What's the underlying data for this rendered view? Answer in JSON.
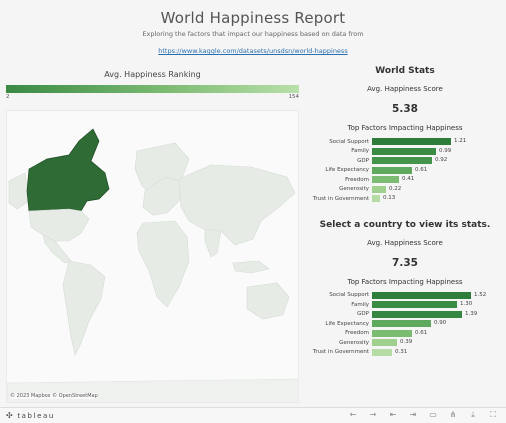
{
  "header": {
    "title": "World Happiness Report",
    "subtitle": "Exploring the factors that impact our happiness based on data from",
    "link": "https://www.kaggle.com/datasets/unsdsn/world-happiness"
  },
  "ranking": {
    "title": "Avg. Happiness Ranking",
    "min_label": "2",
    "max_label": "154",
    "gradient_colors": [
      "#3a8a44",
      "#7dbb73",
      "#b9e0aa"
    ]
  },
  "map": {
    "credit": "© 2023 Mapbox  © OpenStreetMap",
    "highlighted_country": "Canada",
    "highlight_color": "#2e6b35",
    "land_color": "#e6ebe6"
  },
  "world_stats": {
    "title": "World Stats",
    "score_label": "Avg. Happiness Score",
    "score_value": "5.38",
    "factors_title": "Top Factors Impacting Happiness",
    "factors": [
      {
        "label": "Social Support",
        "value": "1.21",
        "amount": 1.21,
        "color": "#2e7d3a"
      },
      {
        "label": "Family",
        "value": "0.99",
        "amount": 0.99,
        "color": "#3a8c44"
      },
      {
        "label": "GDP",
        "value": "0.92",
        "amount": 0.92,
        "color": "#44944c"
      },
      {
        "label": "Life Expectancy",
        "value": "0.61",
        "amount": 0.61,
        "color": "#5ea95e"
      },
      {
        "label": "Freedom",
        "value": "0.41",
        "amount": 0.41,
        "color": "#7cbc72"
      },
      {
        "label": "Generosity",
        "value": "0.22",
        "amount": 0.22,
        "color": "#9fd08e"
      },
      {
        "label": "Trust in Government",
        "value": "0.13",
        "amount": 0.13,
        "color": "#b6dca5"
      }
    ]
  },
  "country_stats": {
    "title": "Select a country to view its stats.",
    "score_label": "Avg. Happiness Score",
    "score_value": "7.35",
    "factors_title": "Top Factors Impacting Happiness",
    "factors": [
      {
        "label": "Social Support",
        "value": "1.52",
        "amount": 1.52,
        "color": "#2e7d3a"
      },
      {
        "label": "Family",
        "value": "1.30",
        "amount": 1.3,
        "color": "#3a8c44"
      },
      {
        "label": "GDP",
        "value": "1.39",
        "amount": 1.39,
        "color": "#358640"
      },
      {
        "label": "Life Expectancy",
        "value": "0.90",
        "amount": 0.9,
        "color": "#5ea95e"
      },
      {
        "label": "Freedom",
        "value": "0.61",
        "amount": 0.61,
        "color": "#7cbc72"
      },
      {
        "label": "Generosity",
        "value": "0.39",
        "amount": 0.39,
        "color": "#9fd08e"
      },
      {
        "label": "Trust in Government",
        "value": "0.31",
        "amount": 0.31,
        "color": "#b6dca5"
      }
    ]
  },
  "toolbar": {
    "logo_text": "tableau",
    "logo_mark": "✣",
    "icons": [
      {
        "name": "undo-icon",
        "glyph": "←"
      },
      {
        "name": "redo-icon",
        "glyph": "→"
      },
      {
        "name": "revert-icon",
        "glyph": "⇤"
      },
      {
        "name": "pause-icon",
        "glyph": "⇥"
      },
      {
        "name": "comment-icon",
        "glyph": "▭"
      },
      {
        "name": "share-icon",
        "glyph": "⋔"
      },
      {
        "name": "download-icon",
        "glyph": "⤓"
      },
      {
        "name": "fullscreen-icon",
        "glyph": "⛶"
      }
    ]
  }
}
